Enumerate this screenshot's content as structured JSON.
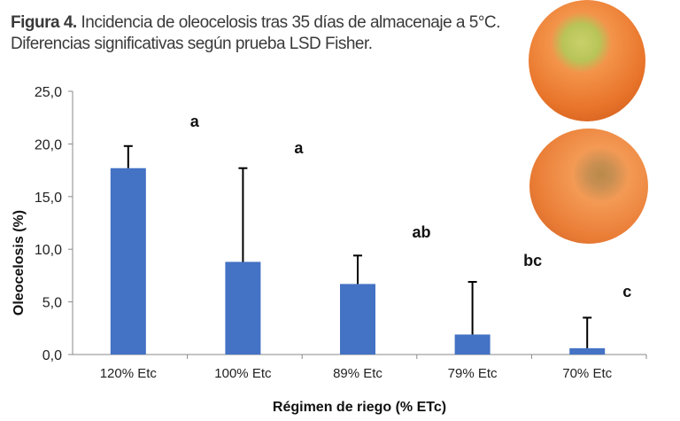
{
  "caption": {
    "figure_label": "Figura 4.",
    "line1": "Incidencia de oleocelosis tras 35 días de almacenaje a 5°C.",
    "line2": "Diferencias significativas según prueba LSD Fisher."
  },
  "chart_data": {
    "type": "bar",
    "xlabel": "Régimen de riego (% ETc)",
    "ylabel": "Oleocelosis (%)",
    "ylim": [
      0,
      25
    ],
    "yticks": [
      "0,0",
      "5,0",
      "10,0",
      "15,0",
      "20,0",
      "25,0"
    ],
    "categories": [
      "120% Etc",
      "100% Etc",
      "89% Etc",
      "79% Etc",
      "70% Etc"
    ],
    "values": [
      17.7,
      8.8,
      6.7,
      1.9,
      0.6
    ],
    "error_upper": [
      19.8,
      17.7,
      9.4,
      6.9,
      3.5
    ],
    "significance_letters": [
      "a",
      "a",
      "ab",
      "bc",
      "c"
    ],
    "bar_color": "#4472c4",
    "grid": false
  }
}
